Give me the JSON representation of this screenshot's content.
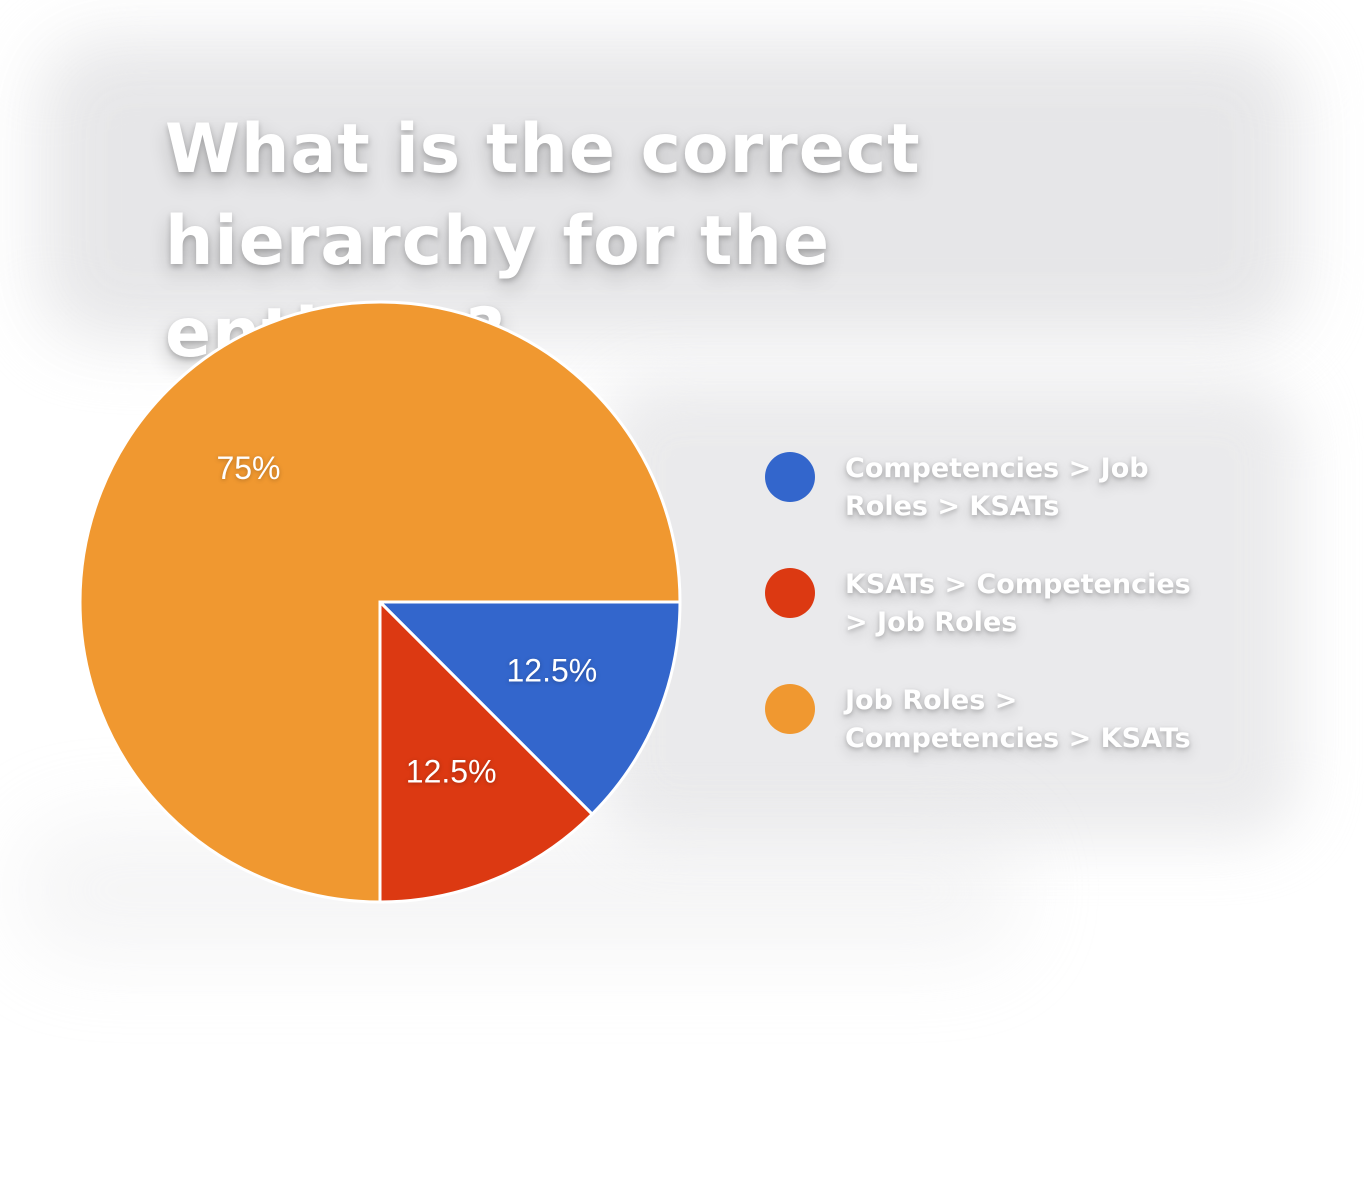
{
  "title": "What is the correct hierarchy for the entities?",
  "colors": {
    "blue": "#3366cc",
    "red": "#dc3912",
    "orange": "#f09830"
  },
  "legend": [
    {
      "label": "Competencies > Job Roles > KSATs",
      "color": "#3366cc"
    },
    {
      "label": "KSATs > Competencies > Job Roles",
      "color": "#dc3912"
    },
    {
      "label": "Job Roles > Competencies > KSATs",
      "color": "#f09830"
    }
  ],
  "chart_data": {
    "type": "pie",
    "title": "What is the correct hierarchy for the entities?",
    "slices": [
      {
        "label": "Competencies > Job Roles > KSATs",
        "value": 12.5,
        "display": "12.5%",
        "color": "#3366cc"
      },
      {
        "label": "KSATs > Competencies > Job Roles",
        "value": 12.5,
        "display": "12.5%",
        "color": "#dc3912"
      },
      {
        "label": "Job Roles > Competencies > KSATs",
        "value": 75,
        "display": "75%",
        "color": "#f09830"
      }
    ],
    "legend_position": "right"
  }
}
